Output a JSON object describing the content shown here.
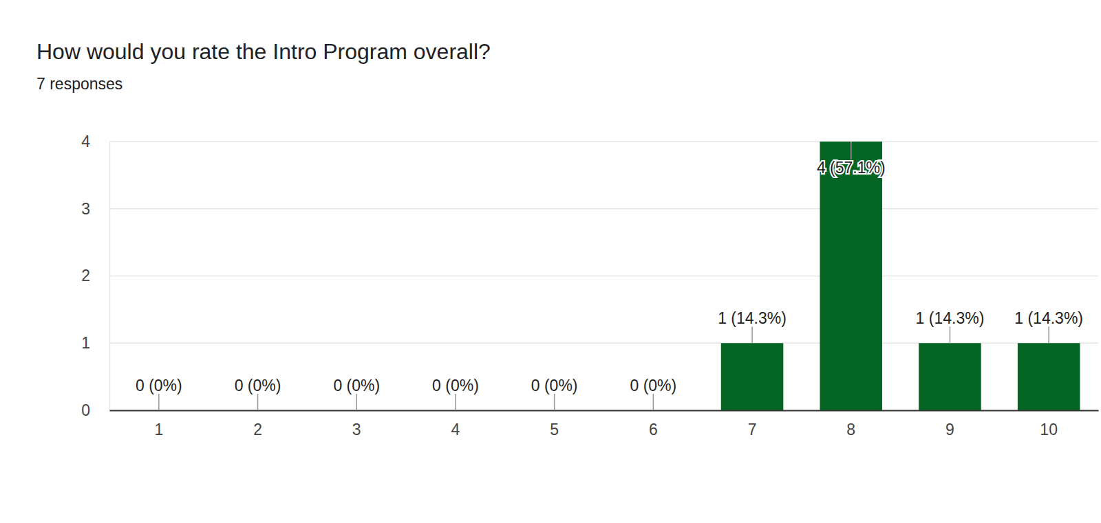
{
  "chart_data": {
    "type": "bar",
    "title": "How would you rate the Intro Program overall?",
    "subtitle": "7 responses",
    "categories": [
      "1",
      "2",
      "3",
      "4",
      "5",
      "6",
      "7",
      "8",
      "9",
      "10"
    ],
    "values": [
      0,
      0,
      0,
      0,
      0,
      0,
      1,
      4,
      1,
      1
    ],
    "value_labels": [
      "0 (0%)",
      "0 (0%)",
      "0 (0%)",
      "0 (0%)",
      "0 (0%)",
      "0 (0%)",
      "1 (14.3%)",
      "4 (57.1%)",
      "1 (14.3%)",
      "1 (14.3%)"
    ],
    "data_labels": true,
    "color": "#046524",
    "ylim": [
      0,
      4
    ],
    "yticks": [
      0,
      1,
      2,
      3,
      4
    ],
    "grid": true
  }
}
